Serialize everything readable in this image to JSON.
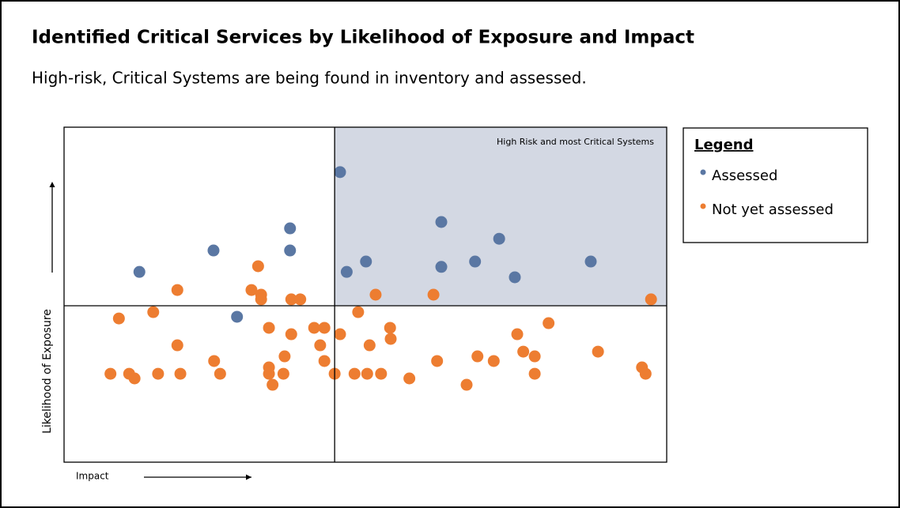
{
  "chart_data": {
    "type": "scatter",
    "title": "Identified Critical Services by Likelihood of Exposure and Impact",
    "subtitle": "High-risk, Critical Systems are being found in inventory and assessed.",
    "x_label": "Impact",
    "y_label": "Likelihood of Exposure",
    "annotation": "High Risk and most Critical Systems",
    "legend_title": "Legend",
    "legend": "right",
    "xlim": [
      0,
      100
    ],
    "ylim": [
      0,
      100
    ],
    "quadrant_lines": {
      "x": 44.9,
      "y": 46.7
    },
    "series": [
      {
        "name": "Assessed",
        "color": "#5a77a3",
        "x": [
          45.8,
          37.5,
          24.8,
          37.5,
          12.5,
          62.6,
          72.2,
          50.1,
          46.9,
          62.6,
          68.2,
          74.8,
          87.4,
          28.7
        ],
        "values": [
          86.6,
          69.8,
          63.2,
          63.2,
          56.8,
          71.7,
          66.7,
          59.9,
          56.8,
          58.3,
          59.9,
          55.2,
          59.9,
          43.4
        ]
      },
      {
        "name": "Not yet assessed",
        "color": "#ed7d31",
        "x": [
          32.2,
          18.8,
          31.1,
          32.7,
          32.7,
          37.7,
          39.2,
          51.7,
          61.3,
          97.4,
          9.1,
          14.8,
          48.8,
          34.0,
          37.7,
          41.5,
          43.2,
          45.8,
          54.1,
          54.2,
          50.7,
          42.5,
          18.8,
          36.6,
          43.2,
          24.9,
          7.7,
          10.8,
          11.7,
          15.6,
          19.3,
          25.9,
          34.0,
          34.0,
          36.4,
          34.6,
          44.9,
          48.2,
          50.3,
          52.6,
          57.3,
          61.9,
          66.8,
          68.6,
          71.3,
          75.2,
          76.2,
          78.1,
          78.1,
          80.4,
          88.6,
          95.9,
          96.5
        ],
        "values": [
          58.5,
          51.4,
          51.4,
          50.0,
          48.6,
          48.6,
          48.6,
          50.0,
          50.0,
          48.6,
          42.9,
          44.8,
          44.8,
          40.1,
          38.2,
          40.1,
          40.1,
          38.2,
          40.1,
          36.8,
          34.9,
          34.9,
          34.9,
          31.6,
          30.2,
          30.2,
          26.4,
          26.4,
          25.0,
          26.4,
          26.4,
          26.4,
          28.3,
          26.4,
          26.4,
          23.1,
          26.4,
          26.4,
          26.4,
          26.4,
          25.0,
          30.2,
          23.1,
          31.6,
          30.2,
          38.2,
          33.0,
          31.6,
          26.4,
          41.5,
          33.0,
          28.3,
          26.4
        ]
      }
    ]
  }
}
